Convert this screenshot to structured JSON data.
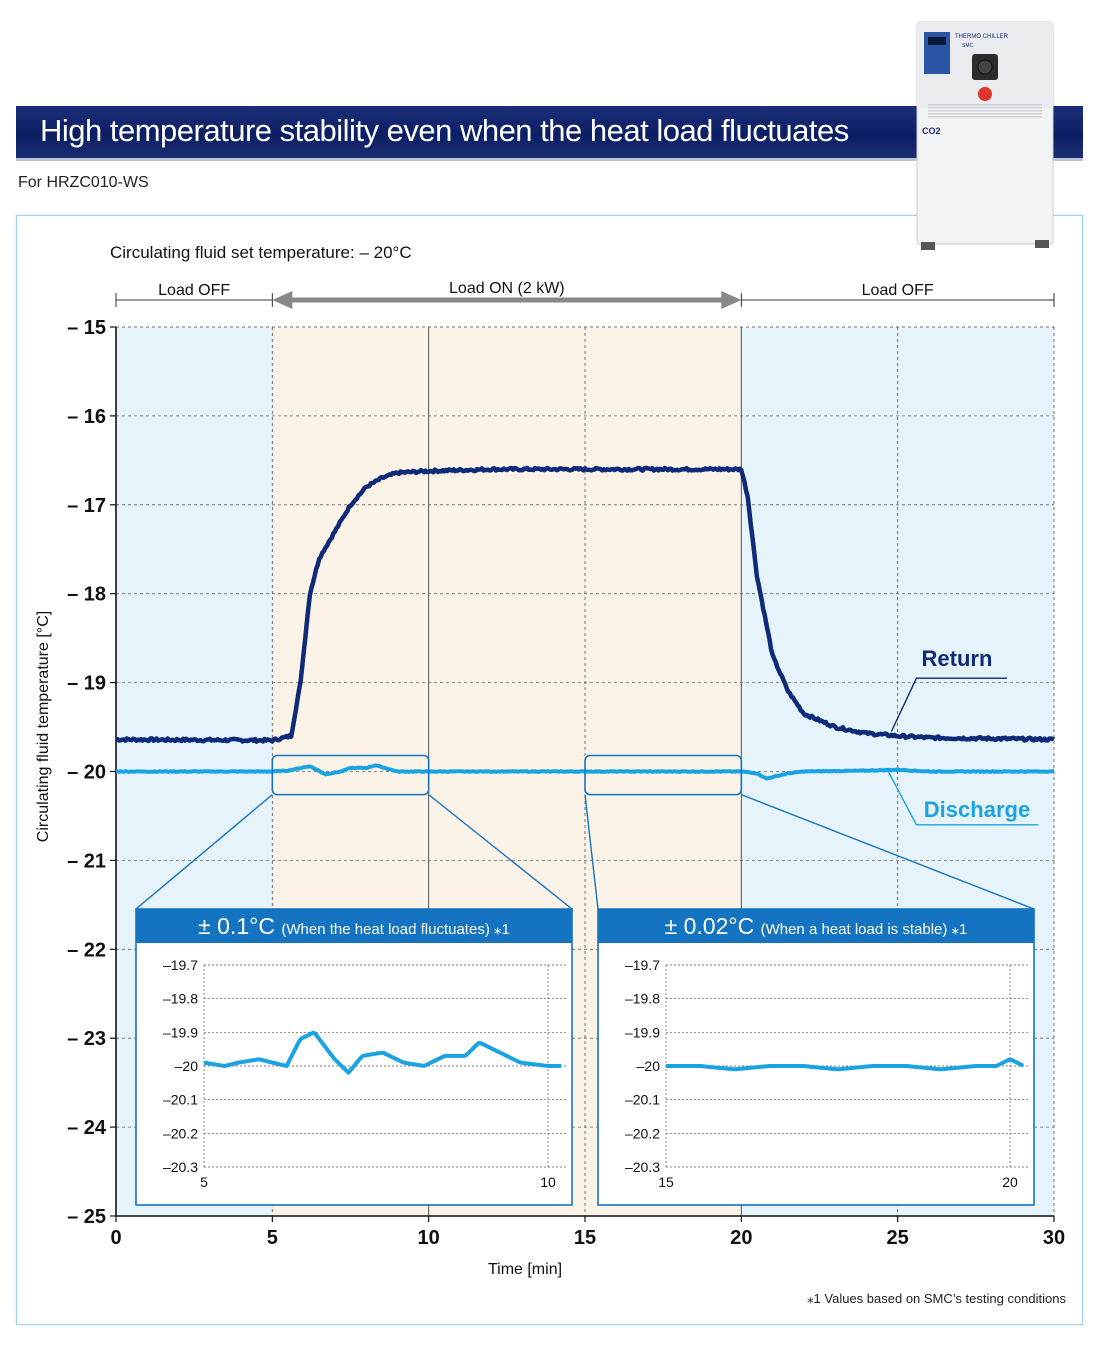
{
  "header": {
    "title": "High temperature stability even when the heat load fluctuates",
    "subtitle": "For HRZC010-WS"
  },
  "product_image": {
    "icon": "thermo-chiller-unit-image",
    "label": "THERMO CHILLER",
    "brand": "SMC",
    "badge": "CO2"
  },
  "footnote": "⁎1  Values based on SMC’s testing conditions",
  "colors": {
    "return": "#0e2a78",
    "discharge": "#1aa3e0",
    "load_off_bg": "#e6f3fb",
    "load_on_bg": "#fbf3e7",
    "inset_header": "#1574c2"
  },
  "chart_data": [
    {
      "type": "line",
      "set_temperature_label": "Circulating fluid set temperature: – 20°C",
      "xlabel": "Time [min]",
      "ylabel": "Circulating fluid temperature [°C]",
      "xlim": [
        0,
        30
      ],
      "ylim": [
        -25,
        -15
      ],
      "x_ticks": [
        "0",
        "5",
        "10",
        "15",
        "20",
        "25",
        "30"
      ],
      "y_ticks": [
        "– 15",
        "– 16",
        "– 17",
        "– 18",
        "– 19",
        "– 20",
        "– 21",
        "– 22",
        "– 23",
        "– 24",
        "– 25"
      ],
      "grid": true,
      "phases": [
        {
          "label": "Load OFF",
          "from": 0,
          "to": 5
        },
        {
          "label": "Load ON (2 kW)",
          "from": 5,
          "to": 20
        },
        {
          "label": "Load OFF",
          "from": 20,
          "to": 30
        }
      ],
      "series": [
        {
          "name": "Return",
          "x": [
            0,
            5,
            5.6,
            5.9,
            6.2,
            6.5,
            7,
            7.5,
            8,
            8.5,
            9,
            10,
            12,
            14,
            16,
            18,
            19.5,
            20,
            20.2,
            20.5,
            21,
            21.5,
            22,
            23,
            24,
            25,
            26,
            28,
            30
          ],
          "y": [
            -19.64,
            -19.65,
            -19.6,
            -19.0,
            -18.0,
            -17.6,
            -17.3,
            -17.0,
            -16.8,
            -16.7,
            -16.64,
            -16.62,
            -16.6,
            -16.6,
            -16.6,
            -16.6,
            -16.6,
            -16.6,
            -16.9,
            -17.8,
            -18.7,
            -19.1,
            -19.35,
            -19.5,
            -19.57,
            -19.6,
            -19.62,
            -19.63,
            -19.64
          ],
          "noise": 0.015
        },
        {
          "name": "Discharge",
          "x": [
            0,
            3,
            5,
            5.5,
            6.2,
            6.7,
            7.2,
            7.5,
            8,
            8.3,
            9,
            10,
            12,
            14,
            16,
            18,
            20,
            20.5,
            20.8,
            21.5,
            22,
            24,
            25,
            26,
            28,
            30
          ],
          "y": [
            -20.0,
            -20.0,
            -20.0,
            -19.99,
            -19.94,
            -20.03,
            -20.0,
            -19.96,
            -19.96,
            -19.93,
            -20.0,
            -20.0,
            -20.0,
            -20.0,
            -20.0,
            -20.0,
            -20.0,
            -20.02,
            -20.08,
            -20.02,
            -20.0,
            -19.99,
            -19.98,
            -20.0,
            -20.0,
            -20.0
          ],
          "noise": 0.004
        }
      ]
    },
    {
      "type": "line",
      "title": "± 0.1°C",
      "title_note": "(When the heat load fluctuates) ⁎1",
      "xlim": [
        5,
        10
      ],
      "ylim": [
        -20.3,
        -19.7
      ],
      "x_ticks": [
        "5",
        "10"
      ],
      "y_ticks": [
        "–19.7",
        "–19.8",
        "–19.9",
        "–20",
        "–20.1",
        "–20.2",
        "–20.3"
      ],
      "series": [
        {
          "name": "Discharge",
          "x": [
            5.0,
            5.3,
            5.5,
            5.8,
            6.2,
            6.4,
            6.6,
            6.9,
            7.1,
            7.3,
            7.6,
            7.9,
            8.2,
            8.5,
            8.8,
            9.0,
            9.3,
            9.6,
            10.0,
            10.2
          ],
          "y": [
            -19.99,
            -20.0,
            -19.99,
            -19.98,
            -20.0,
            -19.92,
            -19.9,
            -19.98,
            -20.02,
            -19.97,
            -19.96,
            -19.99,
            -20.0,
            -19.97,
            -19.97,
            -19.93,
            -19.96,
            -19.99,
            -20.0,
            -20.0
          ]
        }
      ]
    },
    {
      "type": "line",
      "title": "± 0.02°C",
      "title_note": "(When a heat load is stable) ⁎1",
      "xlim": [
        15,
        20
      ],
      "ylim": [
        -20.3,
        -19.7
      ],
      "x_ticks": [
        "15",
        "20"
      ],
      "y_ticks": [
        "–19.7",
        "–19.8",
        "–19.9",
        "–20",
        "–20.1",
        "–20.2",
        "–20.3"
      ],
      "series": [
        {
          "name": "Discharge",
          "x": [
            15.0,
            15.5,
            16.0,
            16.5,
            17.0,
            17.5,
            18.0,
            18.5,
            19.0,
            19.5,
            19.8,
            20.0,
            20.2
          ],
          "y": [
            -20.0,
            -20.0,
            -20.01,
            -20.0,
            -20.0,
            -20.01,
            -20.0,
            -20.0,
            -20.01,
            -20.0,
            -20.0,
            -19.98,
            -20.0
          ]
        }
      ]
    }
  ]
}
